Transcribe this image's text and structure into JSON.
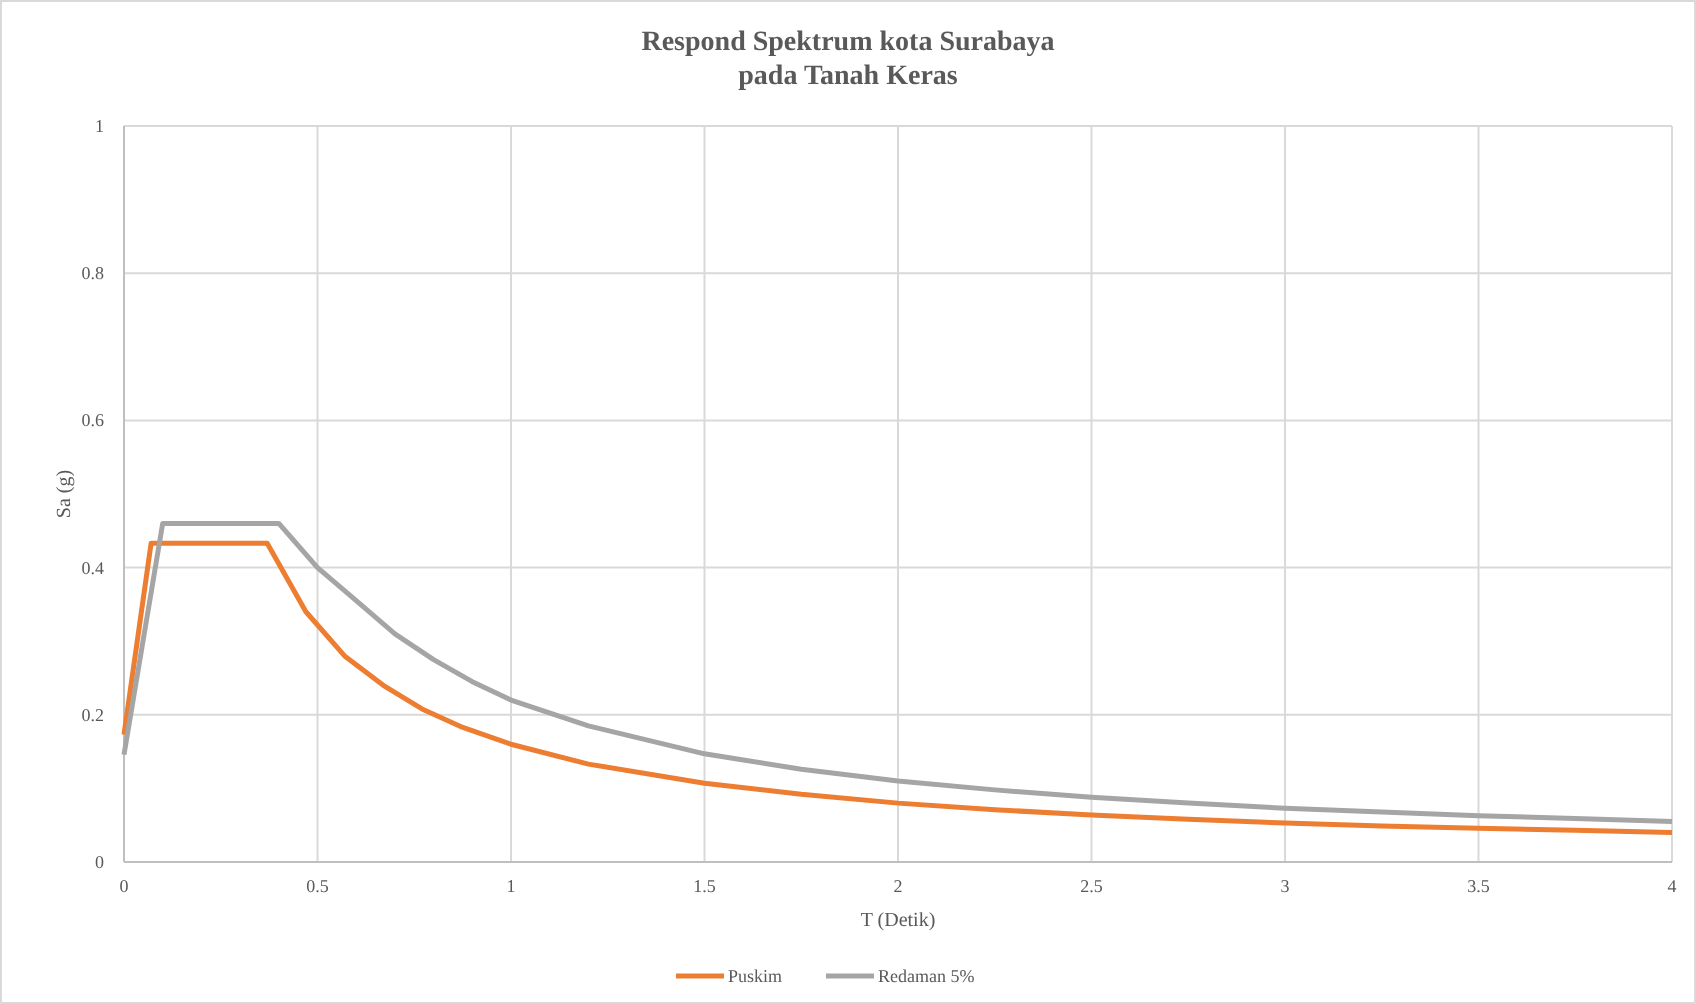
{
  "chart_data": {
    "type": "line",
    "title": "Respond Spektrum kota Surabaya\npada Tanah Keras",
    "xlabel": "T (Detik)",
    "ylabel": "Sa (g)",
    "xlim": [
      0,
      4
    ],
    "xticks": [
      0,
      0.5,
      1,
      1.5,
      2,
      2.5,
      3,
      3.5,
      4
    ],
    "ylim": [
      0,
      1
    ],
    "yticks": [
      0,
      0.2,
      0.4,
      0.6,
      0.8,
      1
    ],
    "grid": true,
    "legend": "bottom",
    "marker": "none",
    "line_style": "solid",
    "series": [
      {
        "name": "Puskim",
        "color": "#ed7d31",
        "x": [
          0,
          0.07,
          0.37,
          0.47,
          0.57,
          0.67,
          0.77,
          0.87,
          1,
          1.2,
          1.5,
          1.75,
          2,
          2.25,
          2.5,
          2.75,
          3,
          3.25,
          3.5,
          3.75,
          4
        ],
        "values": [
          0.173,
          0.433,
          0.433,
          0.34,
          0.28,
          0.24,
          0.208,
          0.184,
          0.16,
          0.133,
          0.107,
          0.092,
          0.08,
          0.071,
          0.064,
          0.058,
          0.053,
          0.049,
          0.046,
          0.043,
          0.04
        ]
      },
      {
        "name": "Redaman 5%",
        "color": "#a5a5a5",
        "x": [
          0,
          0.1,
          0.4,
          0.5,
          0.6,
          0.7,
          0.8,
          0.9,
          1,
          1.2,
          1.5,
          1.75,
          2,
          2.25,
          2.5,
          2.75,
          3,
          3.25,
          3.5,
          3.75,
          4
        ],
        "values": [
          0.146,
          0.46,
          0.46,
          0.4,
          0.355,
          0.31,
          0.275,
          0.245,
          0.22,
          0.185,
          0.147,
          0.126,
          0.11,
          0.098,
          0.088,
          0.08,
          0.073,
          0.068,
          0.063,
          0.059,
          0.055
        ]
      }
    ]
  }
}
